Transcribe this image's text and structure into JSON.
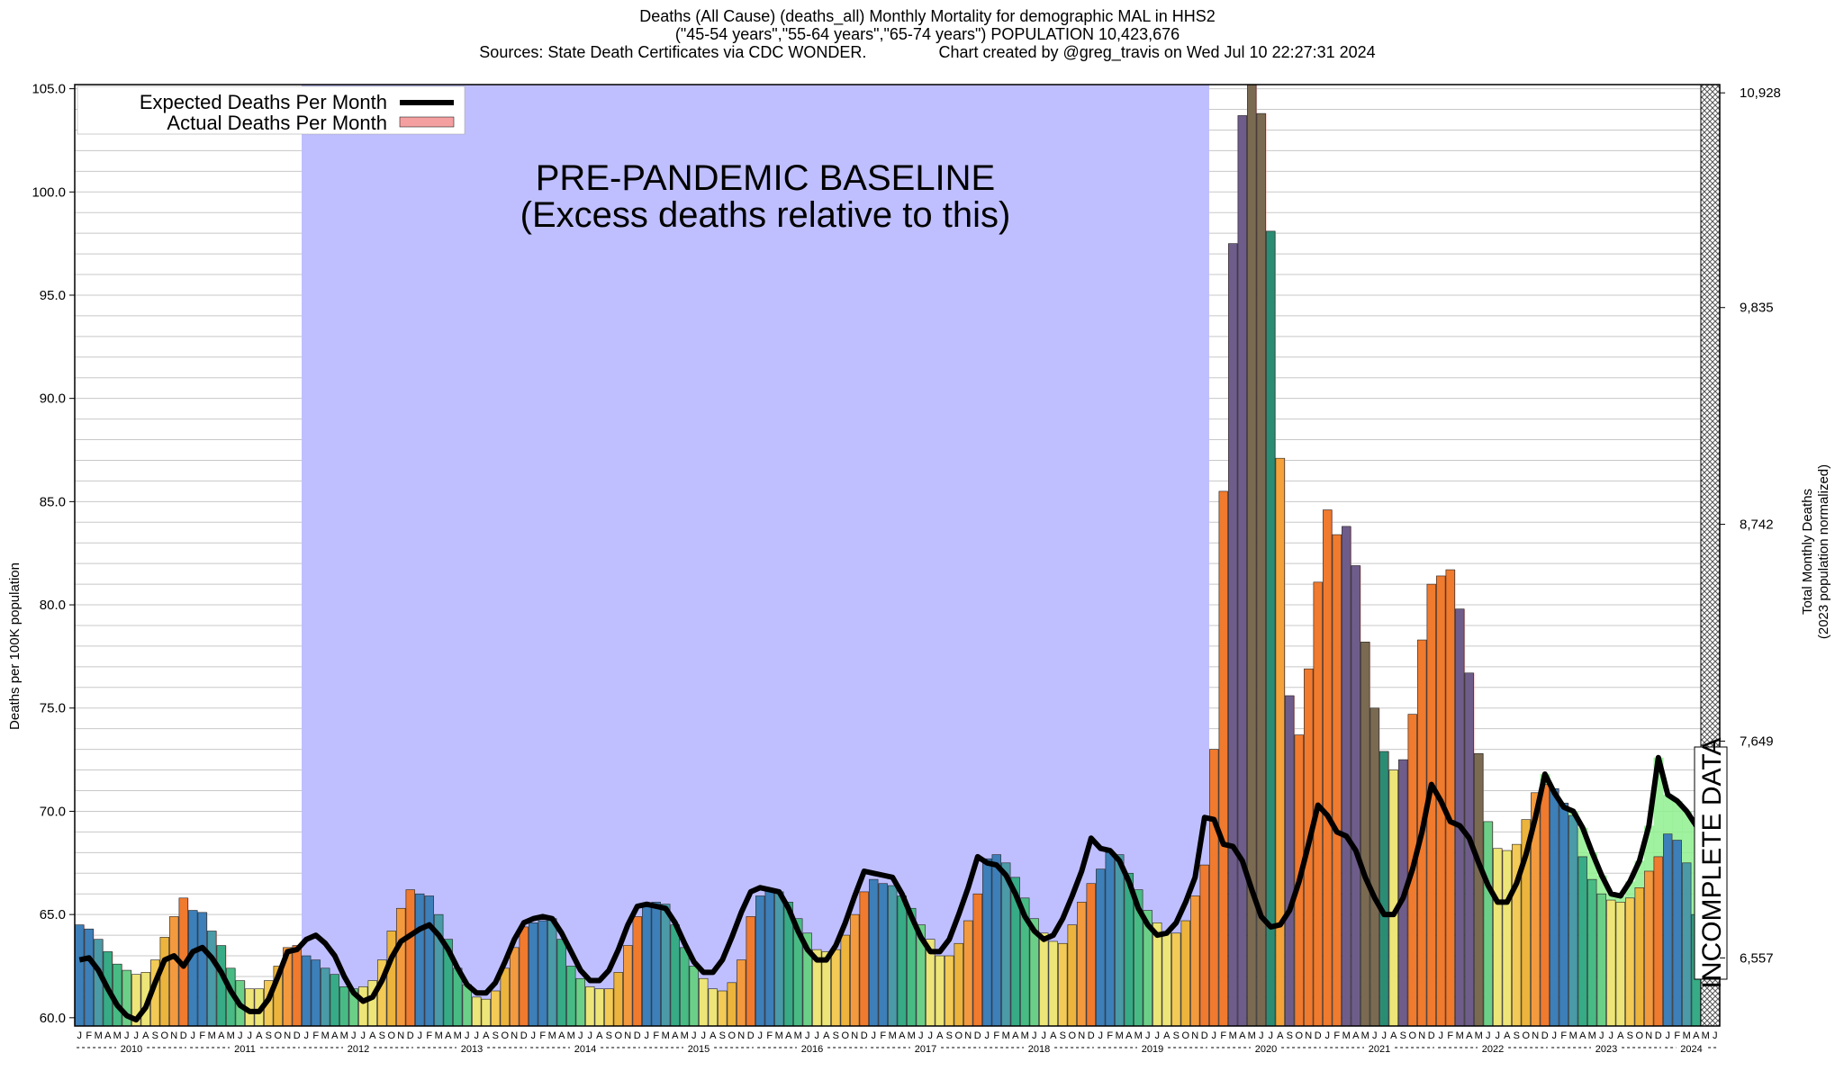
{
  "chart_data": {
    "type": "bar",
    "title_lines": [
      "Deaths (All Cause) (deaths_all) Monthly Mortality for demographic MAL in HHS2",
      "(\"45-54 years\",\"55-64 years\",\"65-74 years\") POPULATION 10,423,676",
      "Sources: State Death Certificates via CDC WONDER.                Chart created by @greg_travis on Wed Jul 10 22:27:31 2024"
    ],
    "ylabel": "Deaths per 100K population",
    "y2label_lines": [
      "Total Monthly Deaths",
      "(2023 population normalized)"
    ],
    "ylim": [
      59.6,
      105.2
    ],
    "yticks": [
      "60.0",
      "65.0",
      "70.0",
      "75.0",
      "80.0",
      "85.0",
      "90.0",
      "95.0",
      "100.0",
      "105.0"
    ],
    "y2ticks": [
      {
        "value": 62.9,
        "label": "6,557"
      },
      {
        "value": 73.4,
        "label": "7,649"
      },
      {
        "value": 83.9,
        "label": "8,742"
      },
      {
        "value": 94.4,
        "label": "9,835"
      },
      {
        "value": 104.8,
        "label": "10,928"
      }
    ],
    "month_letters": [
      "J",
      "F",
      "M",
      "A",
      "M",
      "J",
      "J",
      "A",
      "S",
      "O",
      "N",
      "D"
    ],
    "years": [
      "2010",
      "2011",
      "2012",
      "2013",
      "2014",
      "2015",
      "2016",
      "2017",
      "2018",
      "2019",
      "2020",
      "2021",
      "2022",
      "2023",
      "2024"
    ],
    "start": "2010-01",
    "series": [
      {
        "name": "Actual Deaths Per Month",
        "color": "#f4a0a0",
        "values": [
          64.5,
          64.3,
          63.8,
          63.2,
          62.6,
          62.3,
          62.1,
          62.2,
          62.8,
          63.9,
          64.9,
          65.8,
          65.2,
          65.1,
          64.2,
          63.5,
          62.4,
          61.8,
          61.4,
          61.4,
          61.8,
          62.5,
          63.4,
          63.5,
          63.0,
          62.8,
          62.4,
          62.1,
          61.5,
          61.4,
          61.5,
          61.8,
          62.8,
          64.2,
          65.3,
          66.2,
          66.0,
          65.9,
          65.0,
          63.8,
          62.4,
          61.6,
          61.0,
          60.9,
          61.3,
          62.4,
          63.4,
          64.4,
          64.6,
          64.7,
          64.8,
          63.8,
          62.5,
          61.9,
          61.5,
          61.4,
          61.4,
          62.2,
          63.5,
          64.9,
          65.4,
          65.6,
          65.5,
          64.5,
          63.4,
          62.5,
          61.9,
          61.4,
          61.3,
          61.7,
          62.8,
          64.9,
          65.9,
          66.2,
          66.1,
          65.6,
          64.8,
          64.1,
          63.3,
          63.2,
          63.3,
          64.0,
          65.0,
          66.1,
          66.7,
          66.5,
          66.4,
          65.9,
          65.3,
          64.5,
          63.8,
          63.0,
          63.0,
          63.6,
          64.7,
          66.0,
          67.7,
          67.9,
          67.5,
          66.8,
          65.8,
          64.8,
          64.1,
          63.7,
          63.6,
          64.5,
          65.6,
          66.5,
          67.2,
          68.0,
          67.9,
          67.0,
          66.2,
          65.2,
          64.6,
          64.1,
          64.1,
          64.7,
          65.9,
          67.4,
          73.0,
          85.5,
          97.5,
          103.7,
          105.2,
          103.8,
          98.1,
          87.1,
          75.6,
          73.7,
          76.9,
          81.1,
          84.6,
          83.4,
          83.8,
          81.9,
          78.2,
          75.0,
          72.9,
          72.0,
          72.5,
          74.7,
          78.3,
          81.0,
          81.4,
          81.7,
          79.8,
          76.7,
          72.8,
          69.5,
          68.2,
          68.1,
          68.4,
          69.6,
          70.9,
          71.3,
          71.1,
          70.4,
          69.8,
          67.8,
          66.7,
          66.0,
          65.7,
          65.6,
          65.8,
          66.3,
          67.1,
          67.8,
          68.9,
          68.6,
          67.5,
          65.0,
          62.8,
          61.7
        ]
      },
      {
        "name": "Expected Deaths Per Month",
        "color": "#000000",
        "values": [
          62.8,
          62.9,
          62.3,
          61.4,
          60.6,
          60.1,
          59.9,
          60.5,
          61.7,
          62.8,
          63.0,
          62.5,
          63.2,
          63.4,
          62.9,
          62.2,
          61.3,
          60.6,
          60.3,
          60.3,
          60.9,
          62.0,
          63.2,
          63.3,
          63.8,
          64.0,
          63.6,
          63.0,
          62.0,
          61.2,
          60.8,
          61.0,
          61.8,
          62.9,
          63.7,
          64.0,
          64.3,
          64.5,
          64.0,
          63.3,
          62.4,
          61.6,
          61.2,
          61.2,
          61.7,
          62.7,
          63.8,
          64.6,
          64.8,
          64.9,
          64.8,
          64.1,
          63.2,
          62.3,
          61.8,
          61.8,
          62.3,
          63.3,
          64.5,
          65.4,
          65.5,
          65.4,
          65.3,
          64.6,
          63.6,
          62.7,
          62.2,
          62.2,
          62.8,
          63.9,
          65.1,
          66.1,
          66.3,
          66.2,
          66.1,
          65.3,
          64.2,
          63.3,
          62.8,
          62.8,
          63.5,
          64.6,
          65.9,
          67.1,
          67.0,
          66.9,
          66.8,
          66.0,
          64.9,
          63.9,
          63.2,
          63.2,
          63.8,
          65.0,
          66.3,
          67.8,
          67.5,
          67.4,
          66.9,
          66.0,
          64.9,
          64.2,
          63.8,
          64.0,
          64.8,
          65.9,
          67.1,
          68.7,
          68.2,
          68.1,
          67.6,
          66.6,
          65.3,
          64.5,
          64.0,
          64.1,
          64.6,
          65.6,
          66.8,
          69.7,
          69.6,
          68.4,
          68.3,
          67.6,
          66.2,
          64.9,
          64.4,
          64.5,
          65.2,
          66.6,
          68.4,
          70.3,
          69.8,
          69.0,
          68.8,
          68.1,
          66.8,
          65.8,
          65.0,
          65.0,
          65.8,
          67.2,
          69.0,
          71.3,
          70.5,
          69.5,
          69.3,
          68.7,
          67.5,
          66.4,
          65.6,
          65.6,
          66.5,
          67.9,
          69.7,
          71.8,
          70.9,
          70.2,
          70.0,
          69.2,
          68.0,
          66.9,
          66.0,
          65.9,
          66.6,
          67.6,
          69.3,
          72.6,
          70.8,
          70.5,
          70.0,
          69.3
        ]
      }
    ],
    "baseline_range": [
      "2012-01",
      "2019-12"
    ],
    "baseline_label_lines": [
      "PRE-PANDEMIC BASELINE",
      "(Excess deaths relative to this)"
    ],
    "incomplete_label": "INCOMPLETE DATA",
    "legend_position": "top-left",
    "grid": true
  }
}
